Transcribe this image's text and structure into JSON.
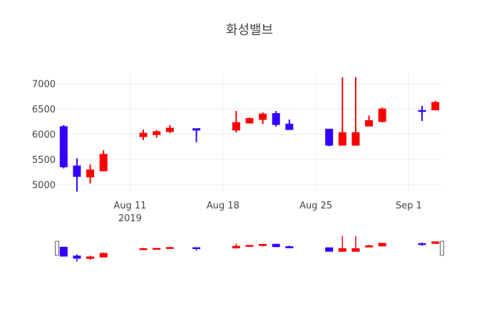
{
  "chart_data": {
    "type": "candlestick",
    "title": "화성밸브",
    "xlabel": "",
    "ylabel": "",
    "ylim": [
      4850,
      7250
    ],
    "y_ticks": [
      5000,
      5500,
      6000,
      6500,
      7000
    ],
    "x_ticks": [
      {
        "date": "2019-08-11",
        "label": "Aug 11",
        "sublabel": "2019"
      },
      {
        "date": "2019-08-18",
        "label": "Aug 18",
        "sublabel": ""
      },
      {
        "date": "2019-08-25",
        "label": "Aug 25",
        "sublabel": ""
      },
      {
        "date": "2019-09-01",
        "label": "Sep 1",
        "sublabel": ""
      }
    ],
    "x_range": [
      "2019-08-06",
      "2019-09-03"
    ],
    "grid": true,
    "increasing_color": "#ff0000",
    "decreasing_color": "#3300ff",
    "rangeslider": true,
    "candles": [
      {
        "date": "2019-08-06",
        "open": 6150,
        "high": 6180,
        "low": 5320,
        "close": 5350
      },
      {
        "date": "2019-08-07",
        "open": 5370,
        "high": 5520,
        "low": 4860,
        "close": 5160
      },
      {
        "date": "2019-08-08",
        "open": 5150,
        "high": 5400,
        "low": 5020,
        "close": 5290
      },
      {
        "date": "2019-08-09",
        "open": 5270,
        "high": 5680,
        "low": 5270,
        "close": 5600
      },
      {
        "date": "2019-08-12",
        "open": 5950,
        "high": 6090,
        "low": 5880,
        "close": 6020
      },
      {
        "date": "2019-08-13",
        "open": 5990,
        "high": 6080,
        "low": 5930,
        "close": 6050
      },
      {
        "date": "2019-08-14",
        "open": 6050,
        "high": 6180,
        "low": 6020,
        "close": 6120
      },
      {
        "date": "2019-08-16",
        "open": 6110,
        "high": 6110,
        "low": 5840,
        "close": 6080
      },
      {
        "date": "2019-08-19",
        "open": 6080,
        "high": 6460,
        "low": 6030,
        "close": 6230
      },
      {
        "date": "2019-08-20",
        "open": 6220,
        "high": 6330,
        "low": 6220,
        "close": 6310
      },
      {
        "date": "2019-08-21",
        "open": 6290,
        "high": 6430,
        "low": 6200,
        "close": 6400
      },
      {
        "date": "2019-08-22",
        "open": 6410,
        "high": 6460,
        "low": 6150,
        "close": 6190
      },
      {
        "date": "2019-08-23",
        "open": 6200,
        "high": 6290,
        "low": 6090,
        "close": 6090
      },
      {
        "date": "2019-08-26",
        "open": 6100,
        "high": 6100,
        "low": 5760,
        "close": 5780
      },
      {
        "date": "2019-08-27",
        "open": 5780,
        "high": 7130,
        "low": 5780,
        "close": 6030
      },
      {
        "date": "2019-08-28",
        "open": 5780,
        "high": 7130,
        "low": 5780,
        "close": 6030
      },
      {
        "date": "2019-08-29",
        "open": 6160,
        "high": 6370,
        "low": 6160,
        "close": 6270
      },
      {
        "date": "2019-08-30",
        "open": 6250,
        "high": 6530,
        "low": 6230,
        "close": 6500
      },
      {
        "date": "2019-09-02",
        "open": 6470,
        "high": 6560,
        "low": 6260,
        "close": 6460
      },
      {
        "date": "2019-09-03",
        "open": 6480,
        "high": 6660,
        "low": 6480,
        "close": 6630
      }
    ]
  }
}
